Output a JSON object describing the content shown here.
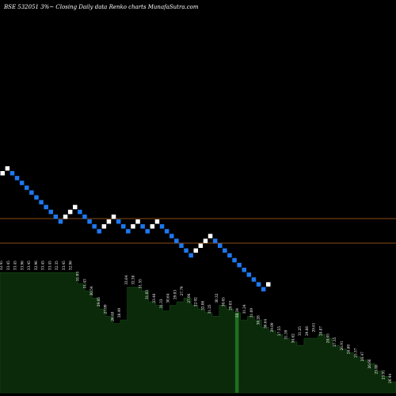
{
  "chart_data": {
    "type": "renko",
    "title": "BSE 532051 3%~   Closing Daily data  Renko  charts MunafaSutra.com",
    "colors": {
      "background": "#000000",
      "up_brick": "#ffffff",
      "down_brick": "#1e78f0",
      "reference_line": "#b8651e",
      "volume_fill": "#0a2a0a",
      "volume_stroke": "#1a4a1a",
      "volume_highlight": "#1f6f1f"
    },
    "bricks": [
      "up",
      "up",
      "down",
      "down",
      "down",
      "down",
      "down",
      "down",
      "down",
      "down",
      "down",
      "down",
      "down",
      "up",
      "up",
      "up",
      "down",
      "down",
      "down",
      "down",
      "down",
      "up",
      "up",
      "up",
      "down",
      "down",
      "down",
      "up",
      "up",
      "down",
      "down",
      "up",
      "up",
      "down",
      "down",
      "down",
      "down",
      "down",
      "down",
      "down",
      "up",
      "up",
      "up",
      "up",
      "down",
      "down",
      "down",
      "down",
      "down",
      "down",
      "down",
      "down",
      "down",
      "down",
      "down",
      "up"
    ],
    "reference_lines": [
      "upper",
      "lower"
    ],
    "volume_labels": [
      "32.45",
      "33.45",
      "33.45",
      "33.96",
      "33.45",
      "32.96",
      "33.45",
      "33.45",
      "32.35",
      "33.45",
      "32.96",
      "31.93",
      "31.43",
      "30.54",
      "29.85",
      "27.99",
      "26.48",
      "28.49",
      "33.64",
      "32.38",
      "31.55",
      "31.03",
      "33.46",
      "31.33",
      "30.64",
      "29.03",
      "27.79",
      "27.96",
      "32.92",
      "32.06",
      "31.25",
      "30.32",
      "30.65",
      "29.03",
      "33.34",
      "31.24",
      "31.09",
      "30.28",
      "30.64",
      "29.09",
      "27.55",
      "31.39",
      "30.62",
      "31.25",
      "29.86",
      "29.61",
      "28.87",
      "28.05",
      "27.35",
      "26.91",
      "26.60",
      "25.37",
      "26.47",
      "26.66",
      "25.08",
      "23.91",
      "26.44"
    ],
    "volume_profile": [
      0.66,
      0.66,
      0.66,
      0.66,
      0.66,
      0.66,
      0.66,
      0.66,
      0.66,
      0.66,
      0.66,
      0.6,
      0.56,
      0.52,
      0.46,
      0.42,
      0.38,
      0.4,
      0.58,
      0.58,
      0.56,
      0.5,
      0.48,
      0.45,
      0.48,
      0.5,
      0.52,
      0.48,
      0.46,
      0.44,
      0.42,
      0.48,
      0.46,
      0.44,
      0.4,
      0.42,
      0.4,
      0.36,
      0.34,
      0.32,
      0.3,
      0.28,
      0.26,
      0.3,
      0.3,
      0.32,
      0.3,
      0.26,
      0.24,
      0.22,
      0.2,
      0.18,
      0.16,
      0.12,
      0.09,
      0.06,
      0.04
    ],
    "volume_highlight_index": 33
  }
}
